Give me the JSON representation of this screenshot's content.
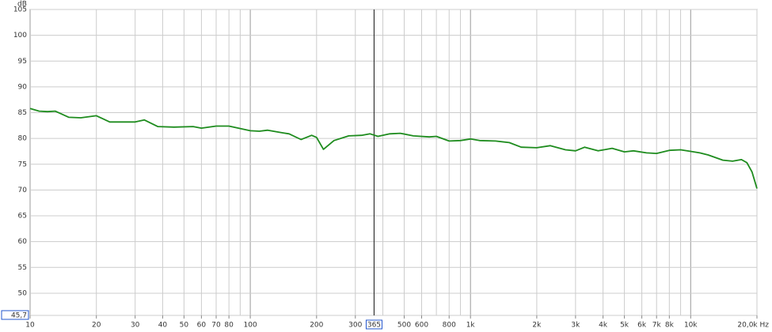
{
  "chart_data": {
    "type": "line",
    "y_unit": "dB",
    "log_x": true,
    "xlim": [
      10,
      20000
    ],
    "ylim": [
      45.7,
      105
    ],
    "yticks": [
      {
        "value": 45.7,
        "label": "45,7"
      },
      50,
      55,
      60,
      65,
      70,
      75,
      80,
      85,
      90,
      95,
      100,
      105
    ],
    "xticks": [
      10,
      20,
      30,
      40,
      50,
      60,
      70,
      80,
      100,
      200,
      300,
      500,
      600,
      800,
      {
        "value": 1000,
        "label": "1k"
      },
      {
        "value": 2000,
        "label": "2k"
      },
      {
        "value": 3000,
        "label": "3k"
      },
      {
        "value": 4000,
        "label": "4k"
      },
      {
        "value": 5000,
        "label": "5k"
      },
      {
        "value": 6000,
        "label": "6k"
      },
      {
        "value": 7000,
        "label": "7k"
      },
      {
        "value": 8000,
        "label": "8k"
      },
      {
        "value": 10000,
        "label": "10k"
      },
      {
        "value": 20000,
        "label": "20,0k Hz"
      }
    ],
    "xgrid": [
      10,
      20,
      30,
      40,
      50,
      60,
      70,
      80,
      90,
      100,
      200,
      300,
      400,
      500,
      600,
      700,
      800,
      900,
      1000,
      2000,
      3000,
      4000,
      5000,
      6000,
      7000,
      8000,
      9000,
      10000,
      20000
    ],
    "xgrid_major": [
      10,
      100,
      1000,
      10000
    ],
    "cursor": 365,
    "grid": true,
    "series": [
      {
        "color": "#1e8c1e",
        "x": [
          10,
          11,
          12,
          13,
          15,
          17,
          20,
          23,
          27,
          30,
          33,
          38,
          45,
          55,
          60,
          70,
          80,
          100,
          110,
          120,
          140,
          150,
          170,
          190,
          200,
          215,
          240,
          280,
          320,
          350,
          380,
          430,
          480,
          550,
          650,
          700,
          800,
          900,
          1000,
          1100,
          1300,
          1500,
          1700,
          2000,
          2300,
          2700,
          3000,
          3300,
          3800,
          4400,
          5000,
          5500,
          6300,
          7000,
          8000,
          9000,
          10000,
          11000,
          12000,
          14000,
          15500,
          17000,
          18000,
          19000,
          20000
        ],
        "values": [
          85.8,
          85.3,
          85.2,
          85.3,
          84.1,
          84.0,
          84.4,
          83.2,
          83.2,
          83.2,
          83.6,
          82.3,
          82.2,
          82.3,
          82.0,
          82.4,
          82.4,
          81.5,
          81.4,
          81.6,
          81.1,
          80.9,
          79.8,
          80.6,
          80.2,
          77.9,
          79.6,
          80.5,
          80.6,
          80.9,
          80.4,
          80.9,
          81.0,
          80.5,
          80.3,
          80.4,
          79.5,
          79.6,
          79.9,
          79.6,
          79.5,
          79.2,
          78.3,
          78.2,
          78.6,
          77.8,
          77.6,
          78.3,
          77.6,
          78.1,
          77.4,
          77.6,
          77.2,
          77.1,
          77.7,
          77.8,
          77.5,
          77.2,
          76.8,
          75.8,
          75.6,
          75.9,
          75.3,
          73.5,
          70.3
        ]
      }
    ]
  }
}
